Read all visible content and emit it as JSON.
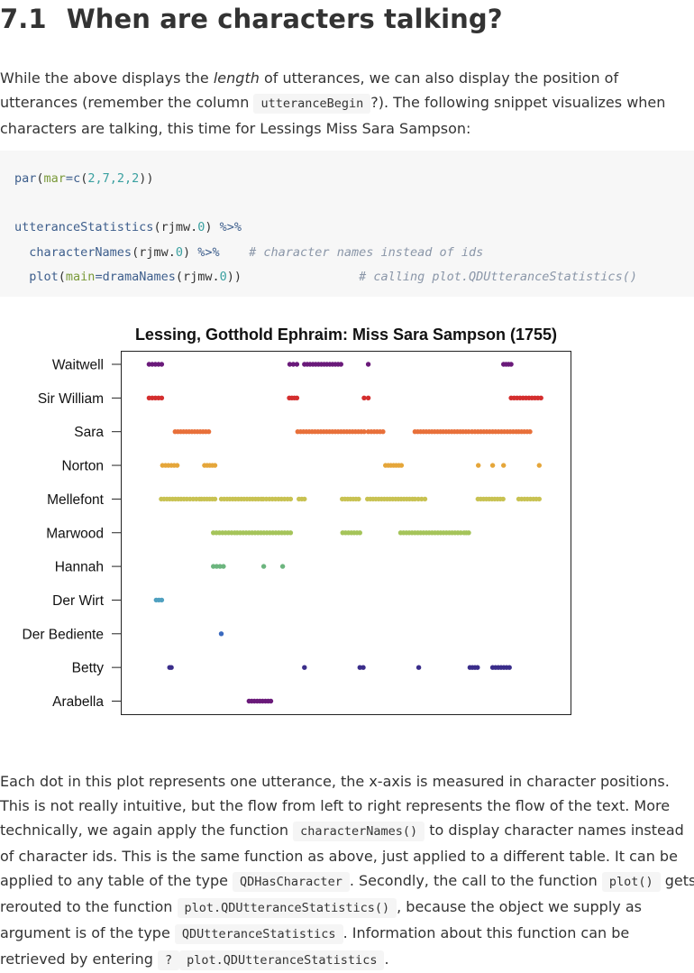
{
  "heading": {
    "number": "7.1",
    "title": "When are characters talking?"
  },
  "intro": {
    "t1": "While the above displays the ",
    "em": "length",
    "t2": " of utterances, we can also display the position of utterances (remember the column ",
    "code": "utteranceBegin",
    "t3": "?). The following snippet visualizes when characters are talking, this time for Lessings Miss Sara Sampson:"
  },
  "code": {
    "l1_fn": "par",
    "l1_arg": "mar",
    "l1_rest1": "=",
    "l1_fn2": "c",
    "l1_rest2": "(",
    "l1_nums": "2,7,2,2",
    "l1_end": "))",
    "l2_fn": "utteranceStatistics",
    "l2_a": "(rjmw.",
    "l2_n": "0",
    "l2_b": ") ",
    "l2_op": "%>%",
    "l3_fn": "characterNames",
    "l3_a": "(rjmw.",
    "l3_n": "0",
    "l3_b": ") ",
    "l3_op": "%>%",
    "l3_cm": "# character names instead of ids",
    "l4_fn": "plot",
    "l4_arg": "main",
    "l4_eq": "=",
    "l4_fn2": "dramaNames",
    "l4_a": "(rjmw.",
    "l4_n": "0",
    "l4_b": "))",
    "l4_cm": "# calling plot.QDUtteranceStatistics()"
  },
  "chart_data": {
    "type": "scatter",
    "title": "Lessing, Gotthold Ephraim: Miss Sara Sampson (1755)",
    "xlabel": "",
    "ylabel": "",
    "xlim": [
      0,
      100
    ],
    "grid": false,
    "characters": [
      "Waitwell",
      "Sir William",
      "Sara",
      "Norton",
      "Mellefont",
      "Marwood",
      "Hannah",
      "Der Wirt",
      "Der Bediente",
      "Betty",
      "Arabella"
    ],
    "colors": [
      "#6a1a7a",
      "#d42e2e",
      "#e8703a",
      "#e5a63a",
      "#c8c252",
      "#a5c45a",
      "#6cb57e",
      "#4fa0c0",
      "#3a6abf",
      "#3a2d8a",
      "#6a1a7a"
    ],
    "series": [
      {
        "name": "Waitwell",
        "segments": [
          [
            3.3,
            6.3
          ],
          [
            36.8,
            38.5
          ],
          [
            40.3,
            49.0
          ],
          [
            55.5,
            55.5
          ],
          [
            87.7,
            89.5
          ]
        ]
      },
      {
        "name": "Sir William",
        "segments": [
          [
            3.3,
            6.3
          ],
          [
            36.7,
            38.5
          ],
          [
            54.5,
            55.5
          ],
          [
            89.5,
            96.6
          ]
        ]
      },
      {
        "name": "Sara",
        "segments": [
          [
            9.5,
            17.5
          ],
          [
            38.7,
            54.5
          ],
          [
            55.5,
            59.0
          ],
          [
            66.6,
            79.4
          ],
          [
            80.2,
            90.7
          ],
          [
            91.3,
            94.0
          ]
        ]
      },
      {
        "name": "Norton",
        "segments": [
          [
            6.5,
            10.0
          ],
          [
            16.5,
            19.0
          ],
          [
            59.6,
            63.4
          ],
          [
            81.7,
            81.7
          ],
          [
            85.1,
            85.3
          ],
          [
            87.7,
            87.7
          ],
          [
            96.2,
            96.2
          ]
        ]
      },
      {
        "name": "Mellefont",
        "segments": [
          [
            6.2,
            11.6
          ],
          [
            12.3,
            15.3
          ],
          [
            15.8,
            19.0
          ],
          [
            20.5,
            30.0
          ],
          [
            30.5,
            37.0
          ],
          [
            39.0,
            40.3
          ],
          [
            49.3,
            53.2
          ],
          [
            55.3,
            66.0
          ],
          [
            66.6,
            69.0
          ],
          [
            81.6,
            87.6
          ],
          [
            91.3,
            96.2
          ]
        ]
      },
      {
        "name": "Marwood",
        "segments": [
          [
            18.6,
            23.7
          ],
          [
            24.3,
            37.0
          ],
          [
            49.4,
            53.5
          ],
          [
            63.2,
            77.5
          ],
          [
            78.3,
            79.4
          ]
        ]
      },
      {
        "name": "Hannah",
        "segments": [
          [
            18.6,
            21.0
          ],
          [
            30.6,
            30.6
          ],
          [
            35.1,
            35.1
          ]
        ]
      },
      {
        "name": "Der Wirt",
        "segments": [
          [
            5.0,
            6.3
          ]
        ]
      },
      {
        "name": "Der Bediente",
        "segments": [
          [
            20.5,
            20.5
          ]
        ]
      },
      {
        "name": "Betty",
        "segments": [
          [
            8.2,
            8.6
          ],
          [
            40.3,
            40.3
          ],
          [
            53.5,
            54.3
          ],
          [
            67.5,
            67.5
          ],
          [
            79.7,
            81.5
          ],
          [
            85.1,
            89.1
          ]
        ]
      },
      {
        "name": "Arabella",
        "segments": [
          [
            27.1,
            32.3
          ]
        ]
      }
    ]
  },
  "body": {
    "t1": "Each dot in this plot represents one utterance, the x-axis is measured in character positions. This is not really intuitive, but the flow from left to right represents the flow of the text. More technically, we again apply the function ",
    "c1": "characterNames()",
    "t2": " to display character names instead of character ids. This is the same function as above, just applied to a different table. It can be applied to any table of the type ",
    "c2": "QDHasCharacter",
    "t3": ". Secondly, the call to the function ",
    "c3": "plot()",
    "t4": " gets rerouted to the function ",
    "c4": "plot.QDUtteranceStatistics()",
    "t5": ", because the object we supply as argument is of the type ",
    "c5": "QDUtteranceStatistics",
    "t6": ". Information about this function can be retrieved by entering ",
    "c6": "?",
    "t7": "plot.QDUtteranceStatistics",
    "t8": "."
  }
}
